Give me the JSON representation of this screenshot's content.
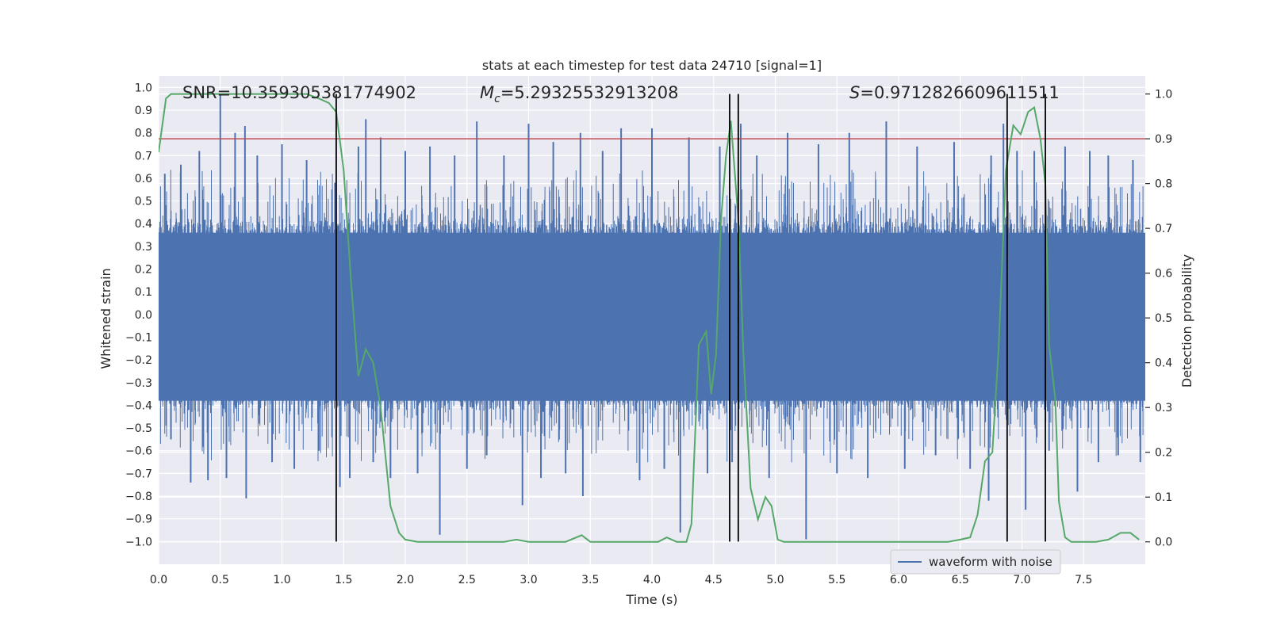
{
  "chart_data": {
    "type": "line",
    "title": "stats at each timestep for test data 24710 [signal=1]",
    "xlabel": "Time (s)",
    "ylabel_left": "Whitened strain",
    "ylabel_right": "Detection probability",
    "xlim": [
      0.0,
      8.0
    ],
    "ylim_left": [
      -1.1,
      1.05
    ],
    "ylim_right": [
      -0.05,
      1.04
    ],
    "grid": true,
    "x_ticks": [
      "0.0",
      "0.5",
      "1.0",
      "1.5",
      "2.0",
      "2.5",
      "3.0",
      "3.5",
      "4.0",
      "4.5",
      "5.0",
      "5.5",
      "6.0",
      "6.5",
      "7.0",
      "7.5"
    ],
    "x_tick_values": [
      0.0,
      0.5,
      1.0,
      1.5,
      2.0,
      2.5,
      3.0,
      3.5,
      4.0,
      4.5,
      5.0,
      5.5,
      6.0,
      6.5,
      7.0,
      7.5
    ],
    "y_left_ticks": [
      "1.0",
      "0.9",
      "0.8",
      "0.7",
      "0.6",
      "0.5",
      "0.4",
      "0.3",
      "0.2",
      "0.1",
      "0.0",
      "-0.1",
      "-0.2",
      "-0.3",
      "-0.4",
      "-0.5",
      "-0.6",
      "-0.7",
      "-0.8",
      "-0.9",
      "-1.0"
    ],
    "y_left_tick_values": [
      1.0,
      0.9,
      0.8,
      0.7,
      0.6,
      0.5,
      0.4,
      0.3,
      0.2,
      0.1,
      0.0,
      -0.1,
      -0.2,
      -0.3,
      -0.4,
      -0.5,
      -0.6,
      -0.7,
      -0.8,
      -0.9,
      -1.0
    ],
    "y_right_ticks": [
      "1.0",
      "0.9",
      "0.8",
      "0.7",
      "0.6",
      "0.5",
      "0.4",
      "0.3",
      "0.2",
      "0.1",
      "0.0"
    ],
    "y_right_tick_values": [
      1.0,
      0.9,
      0.8,
      0.7,
      0.6,
      0.5,
      0.4,
      0.3,
      0.2,
      0.1,
      0.0
    ],
    "annotations": {
      "snr": "SNR=10.359305381774902",
      "mc_symbol": "M",
      "mc_subscript": "c",
      "mc_value": "=5.29325532913208",
      "s_symbol": "S",
      "s_value": "=0.9712826609611511"
    },
    "threshold": {
      "value": 0.9,
      "axis": "right",
      "color": "#c44e52"
    },
    "vertical_markers": [
      1.44,
      4.63,
      4.7,
      6.88,
      7.19
    ],
    "series": [
      {
        "name": "waveform with noise",
        "axis": "left",
        "color": "#4c72b0",
        "envelope_typical": 0.4,
        "spikes": [
          {
            "t": 0.05,
            "v": 0.62
          },
          {
            "t": 0.1,
            "v": -0.55
          },
          {
            "t": 0.18,
            "v": 0.66
          },
          {
            "t": 0.26,
            "v": -0.74
          },
          {
            "t": 0.33,
            "v": 0.72
          },
          {
            "t": 0.4,
            "v": -0.73
          },
          {
            "t": 0.5,
            "v": 0.97
          },
          {
            "t": 0.55,
            "v": -0.72
          },
          {
            "t": 0.62,
            "v": 0.8
          },
          {
            "t": 0.7,
            "v": 0.83
          },
          {
            "t": 0.71,
            "v": -0.81
          },
          {
            "t": 0.8,
            "v": 0.7
          },
          {
            "t": 0.92,
            "v": -0.65
          },
          {
            "t": 1.0,
            "v": 0.75
          },
          {
            "t": 1.1,
            "v": -0.68
          },
          {
            "t": 1.2,
            "v": 0.68
          },
          {
            "t": 1.3,
            "v": -0.6
          },
          {
            "t": 1.43,
            "v": 0.58
          },
          {
            "t": 1.47,
            "v": -0.76
          },
          {
            "t": 1.55,
            "v": -0.72
          },
          {
            "t": 1.62,
            "v": 0.74
          },
          {
            "t": 1.68,
            "v": 0.86
          },
          {
            "t": 1.74,
            "v": -0.65
          },
          {
            "t": 1.8,
            "v": 0.78
          },
          {
            "t": 1.88,
            "v": -0.72
          },
          {
            "t": 2.0,
            "v": 0.72
          },
          {
            "t": 2.1,
            "v": -0.7
          },
          {
            "t": 2.2,
            "v": 0.74
          },
          {
            "t": 2.28,
            "v": -0.97
          },
          {
            "t": 2.4,
            "v": 0.7
          },
          {
            "t": 2.5,
            "v": -0.68
          },
          {
            "t": 2.58,
            "v": 0.85
          },
          {
            "t": 2.66,
            "v": -0.62
          },
          {
            "t": 2.8,
            "v": 0.7
          },
          {
            "t": 2.95,
            "v": -0.84
          },
          {
            "t": 3.0,
            "v": 0.84
          },
          {
            "t": 3.1,
            "v": -0.72
          },
          {
            "t": 3.2,
            "v": 0.76
          },
          {
            "t": 3.3,
            "v": -0.7
          },
          {
            "t": 3.42,
            "v": 0.8
          },
          {
            "t": 3.44,
            "v": -0.8
          },
          {
            "t": 3.6,
            "v": 0.72
          },
          {
            "t": 3.75,
            "v": 0.82
          },
          {
            "t": 3.9,
            "v": -0.73
          },
          {
            "t": 4.0,
            "v": 0.82
          },
          {
            "t": 4.1,
            "v": -0.68
          },
          {
            "t": 4.23,
            "v": -0.96
          },
          {
            "t": 4.3,
            "v": 0.78
          },
          {
            "t": 4.45,
            "v": -0.7
          },
          {
            "t": 4.55,
            "v": 0.74
          },
          {
            "t": 4.65,
            "v": -0.65
          },
          {
            "t": 4.72,
            "v": 0.84
          },
          {
            "t": 4.85,
            "v": 0.7
          },
          {
            "t": 4.95,
            "v": -0.72
          },
          {
            "t": 5.1,
            "v": 0.8
          },
          {
            "t": 5.25,
            "v": -0.99
          },
          {
            "t": 5.35,
            "v": 0.75
          },
          {
            "t": 5.5,
            "v": -0.7
          },
          {
            "t": 5.6,
            "v": 0.8
          },
          {
            "t": 5.75,
            "v": -0.72
          },
          {
            "t": 5.9,
            "v": 0.85
          },
          {
            "t": 6.05,
            "v": -0.68
          },
          {
            "t": 6.15,
            "v": 0.74
          },
          {
            "t": 6.3,
            "v": -0.62
          },
          {
            "t": 6.45,
            "v": 0.76
          },
          {
            "t": 6.58,
            "v": -0.68
          },
          {
            "t": 6.73,
            "v": -0.82
          },
          {
            "t": 6.75,
            "v": 0.7
          },
          {
            "t": 6.85,
            "v": 0.84
          },
          {
            "t": 6.96,
            "v": 0.72
          },
          {
            "t": 7.03,
            "v": -0.86
          },
          {
            "t": 7.1,
            "v": 0.72
          },
          {
            "t": 7.22,
            "v": -0.6
          },
          {
            "t": 7.35,
            "v": 0.74
          },
          {
            "t": 7.45,
            "v": -0.78
          },
          {
            "t": 7.55,
            "v": 0.72
          },
          {
            "t": 7.62,
            "v": -0.65
          },
          {
            "t": 7.7,
            "v": 0.7
          },
          {
            "t": 7.78,
            "v": -0.62
          },
          {
            "t": 7.9,
            "v": 0.68
          },
          {
            "t": 7.96,
            "v": -0.65
          }
        ]
      },
      {
        "name": "detection probability",
        "axis": "right",
        "color": "#55a868",
        "x": [
          0.0,
          0.06,
          0.1,
          0.2,
          0.5,
          1.0,
          1.2,
          1.3,
          1.38,
          1.44,
          1.5,
          1.56,
          1.62,
          1.68,
          1.74,
          1.8,
          1.88,
          1.95,
          2.0,
          2.1,
          2.2,
          2.4,
          2.6,
          2.8,
          2.9,
          3.0,
          3.1,
          3.2,
          3.3,
          3.43,
          3.5,
          3.6,
          3.7,
          3.8,
          3.9,
          4.0,
          4.05,
          4.12,
          4.2,
          4.28,
          4.32,
          4.38,
          4.44,
          4.48,
          4.52,
          4.56,
          4.6,
          4.64,
          4.7,
          4.74,
          4.8,
          4.86,
          4.92,
          4.97,
          5.02,
          5.07,
          5.12,
          5.2,
          5.4,
          5.6,
          5.8,
          6.0,
          6.2,
          6.4,
          6.5,
          6.58,
          6.64,
          6.7,
          6.76,
          6.81,
          6.87,
          6.93,
          6.99,
          7.05,
          7.1,
          7.15,
          7.19,
          7.22,
          7.27,
          7.3,
          7.35,
          7.4,
          7.5,
          7.6,
          7.7,
          7.8,
          7.88,
          7.95
        ],
        "values": [
          0.87,
          0.99,
          1.0,
          1.0,
          1.0,
          1.0,
          1.0,
          0.99,
          0.98,
          0.96,
          0.83,
          0.58,
          0.37,
          0.43,
          0.4,
          0.3,
          0.08,
          0.02,
          0.005,
          0.0,
          0.0,
          0.0,
          0.0,
          0.0,
          0.005,
          0.0,
          0.0,
          0.0,
          0.0,
          0.015,
          0.0,
          0.0,
          0.0,
          0.0,
          0.0,
          0.0,
          0.0,
          0.01,
          0.0,
          0.0,
          0.04,
          0.44,
          0.47,
          0.33,
          0.42,
          0.72,
          0.86,
          0.94,
          0.72,
          0.43,
          0.12,
          0.05,
          0.1,
          0.08,
          0.005,
          0.0,
          0.0,
          0.0,
          0.0,
          0.0,
          0.0,
          0.0,
          0.0,
          0.0,
          0.005,
          0.01,
          0.06,
          0.18,
          0.2,
          0.43,
          0.83,
          0.93,
          0.91,
          0.96,
          0.97,
          0.9,
          0.8,
          0.44,
          0.32,
          0.09,
          0.01,
          0.0,
          0.0,
          0.0,
          0.005,
          0.02,
          0.02,
          0.005
        ]
      }
    ],
    "legend": {
      "label": "waveform with noise",
      "position": "lower-right"
    }
  }
}
